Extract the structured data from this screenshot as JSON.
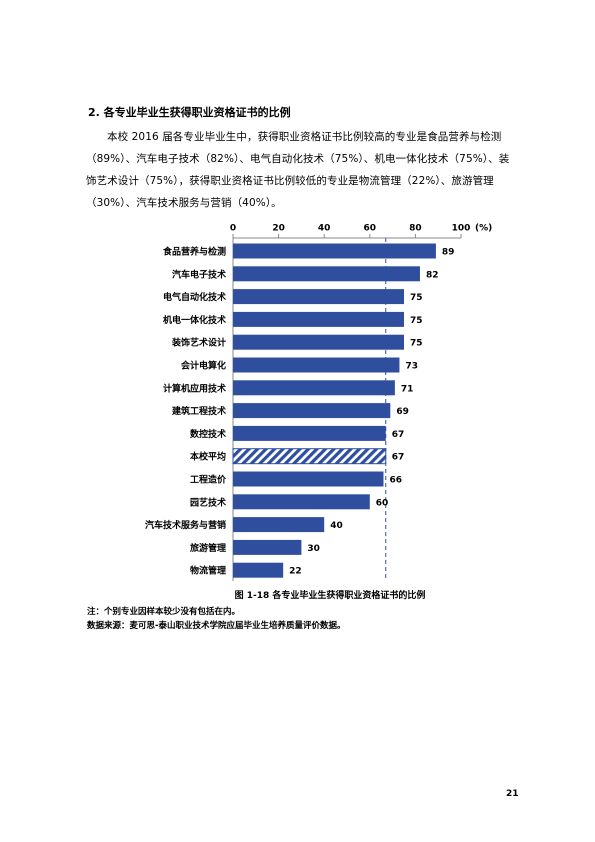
{
  "heading": "2.   各专业毕业生获得职业资格证书的比例",
  "paragraph": "本校 2016 届各专业毕业生中，获得职业资格证书比例较高的专业是食品营养与检测（89%）、汽车电子技术（82%）、电气自动化技术（75%）、机电一体化技术（75%）、装饰艺术设计（75%），获得职业资格证书比例较低的专业是物流管理（22%）、旅游管理（30%）、汽车技术服务与营销（40%）。",
  "chart_data": {
    "type": "bar",
    "orientation": "horizontal",
    "categories": [
      "食品营养与检测",
      "汽车电子技术",
      "电气自动化技术",
      "机电一体化技术",
      "装饰艺术设计",
      "会计电算化",
      "计算机应用技术",
      "建筑工程技术",
      "数控技术",
      "本校平均",
      "工程造价",
      "园艺技术",
      "汽车技术服务与营销",
      "旅游管理",
      "物流管理"
    ],
    "values": [
      89,
      82,
      75,
      75,
      75,
      73,
      71,
      69,
      67,
      67,
      66,
      60,
      40,
      30,
      22
    ],
    "color": "#2f4f9e",
    "hatched_category": "本校平均",
    "xlim": [
      0,
      100
    ],
    "xticks": [
      0,
      20,
      40,
      60,
      80,
      100
    ],
    "x_unit": "(%)"
  },
  "caption": "图 1-18    各专业毕业生获得职业资格证书的比例",
  "notes": [
    "注：个别专业因样本较少没有包括在内。",
    "数据来源：麦可思-泰山职业技术学院应届毕业生培养质量评价数据。"
  ],
  "page_number": "21"
}
